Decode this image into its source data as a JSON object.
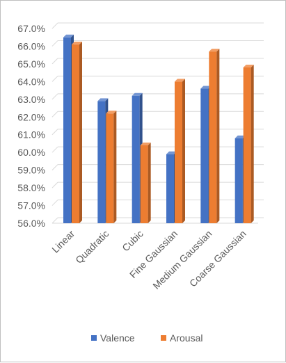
{
  "chart_data": {
    "type": "bar",
    "style": "3d-clustered-column",
    "categories": [
      "Linear",
      "Quadratic",
      "Cubic",
      "Fine Gaussian",
      "Medium Gaussian",
      "Coarse Gaussian"
    ],
    "series": [
      {
        "name": "Valence",
        "color": "#4472c4",
        "values": [
          66.5,
          62.9,
          63.2,
          59.9,
          63.6,
          60.8
        ]
      },
      {
        "name": "Arousal",
        "color": "#ed7d31",
        "values": [
          66.1,
          62.2,
          60.4,
          64.0,
          65.7,
          64.8
        ]
      }
    ],
    "y_ticks": [
      "56.0%",
      "57.0%",
      "58.0%",
      "59.0%",
      "60.0%",
      "61.0%",
      "62.0%",
      "63.0%",
      "64.0%",
      "65.0%",
      "66.0%",
      "67.0%"
    ],
    "ylim": [
      56,
      67
    ],
    "y_format": "percent-1-decimal",
    "grid": true,
    "legend_position": "bottom",
    "title": "",
    "xlabel": "",
    "ylabel": ""
  }
}
